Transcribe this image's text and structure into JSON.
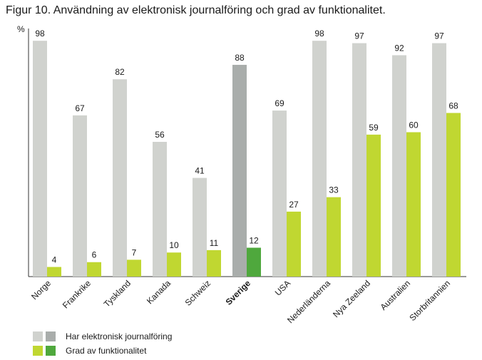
{
  "title": "Figur 10. Användning av elektronisk journalföring och grad av funktionalitet.",
  "chart_data": {
    "type": "bar",
    "ylabel": "%",
    "ylim": [
      0,
      100
    ],
    "grid": false,
    "categories": [
      "Norge",
      "Frankrike",
      "Tyskland",
      "Kanada",
      "Schweiz",
      "Sverige",
      "USA",
      "Nederländerna",
      "Nya Zeeland",
      "Australien",
      "Storbritannien"
    ],
    "highlight_category": "Sverige",
    "series": [
      {
        "name": "Har elektronisk journalföring",
        "values": [
          98,
          67,
          82,
          56,
          41,
          88,
          69,
          98,
          97,
          92,
          97
        ],
        "color": "#d0d2ce",
        "highlight_color": "#a9adab"
      },
      {
        "name": "Grad av funktionalitet",
        "values": [
          4,
          6,
          7,
          10,
          11,
          12,
          27,
          33,
          59,
          60,
          68
        ],
        "color": "#c0d731",
        "highlight_color": "#4fa83d"
      }
    ]
  }
}
